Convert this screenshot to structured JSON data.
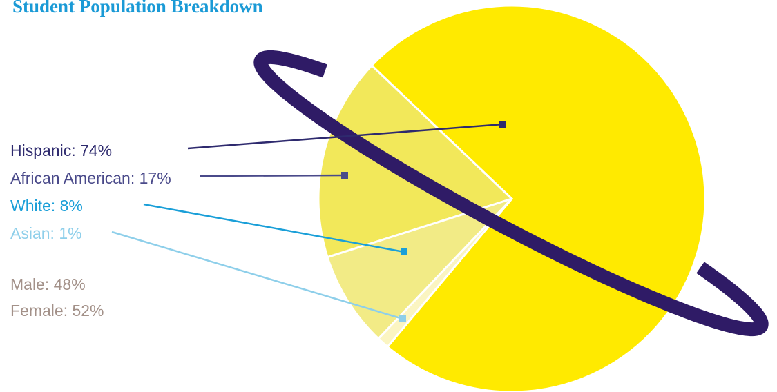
{
  "chart_data": {
    "type": "pie",
    "title": "Student Population Breakdown",
    "categories": [
      "Hispanic",
      "African American",
      "White",
      "Asian"
    ],
    "values": [
      74,
      17,
      8,
      1
    ],
    "value_labels": [
      "Hispanic: 74%",
      "African American: 17%",
      "White: 8%",
      "Asian: 1%"
    ],
    "colors": [
      "#ffea00",
      "#f2e85a",
      "#f2eb86",
      "#fbf5c2"
    ],
    "label_colors": [
      "#2e2a6e",
      "#4a4a8a",
      "#1a9fd8",
      "#8ecfea"
    ],
    "gender": {
      "categories": [
        "Male",
        "Female"
      ],
      "values": [
        48,
        52
      ],
      "value_labels": [
        "Male: 48%",
        "Female: 52%"
      ],
      "color": "#a39189"
    }
  }
}
